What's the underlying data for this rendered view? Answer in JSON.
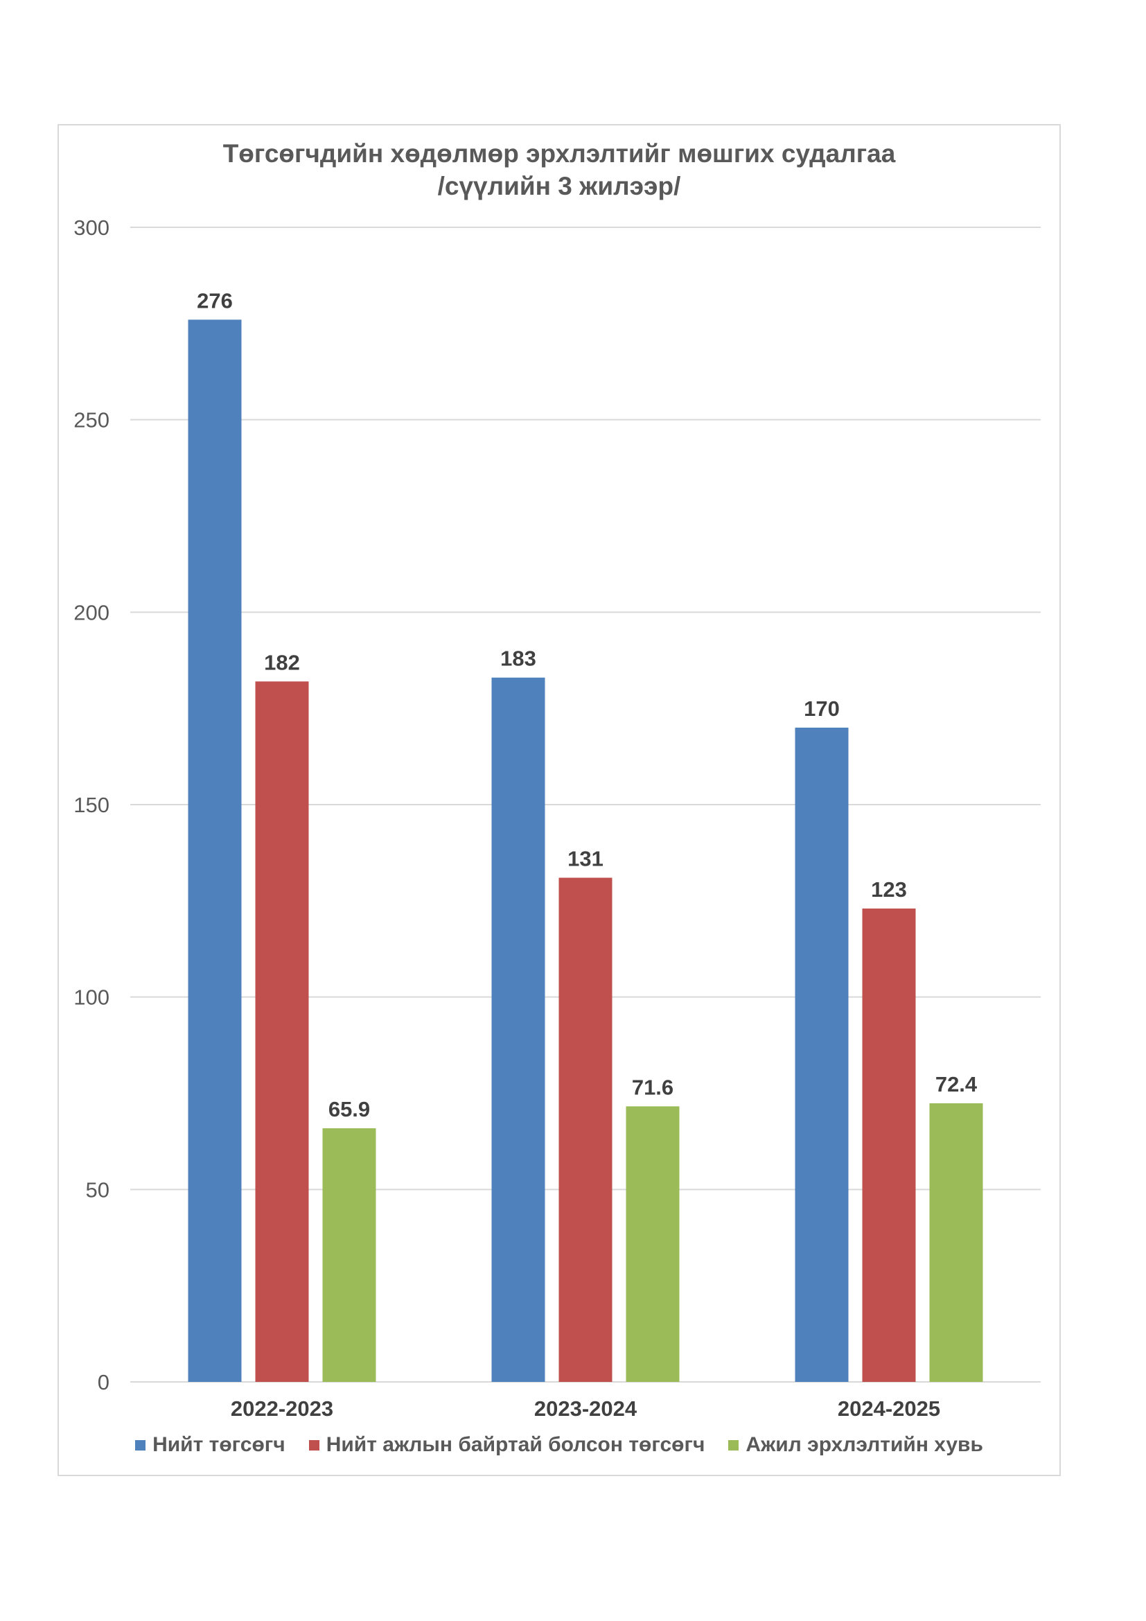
{
  "chart_data": {
    "type": "bar",
    "title": "Төгсөгчдийн хөдөлмөр эрхлэлтийг мөшгих судалгаа",
    "subtitle": "/сүүлийн 3 жилээр/",
    "categories": [
      "2022-2023",
      "2023-2024",
      "2024-2025"
    ],
    "series": [
      {
        "name": "Нийт төгсөгч",
        "values": [
          276,
          183,
          170
        ],
        "color": "#4f81bd"
      },
      {
        "name": "Нийт ажлын байртай болсон төгсөгч",
        "values": [
          182,
          131,
          123
        ],
        "color": "#c0504d"
      },
      {
        "name": "Ажил эрхлэлтийн хувь",
        "values": [
          65.9,
          71.6,
          72.4
        ],
        "color": "#9bbb59"
      }
    ],
    "value_labels": [
      [
        "276",
        "183",
        "170"
      ],
      [
        "182",
        "131",
        "123"
      ],
      [
        "65.9",
        "71.6",
        "72.4"
      ]
    ],
    "y_ticks": [
      "0",
      "50",
      "100",
      "150",
      "200",
      "250",
      "300"
    ],
    "ylim": [
      0,
      300
    ],
    "grid": true,
    "legend_position": "bottom",
    "gridline_color": "#d9d9d9"
  }
}
